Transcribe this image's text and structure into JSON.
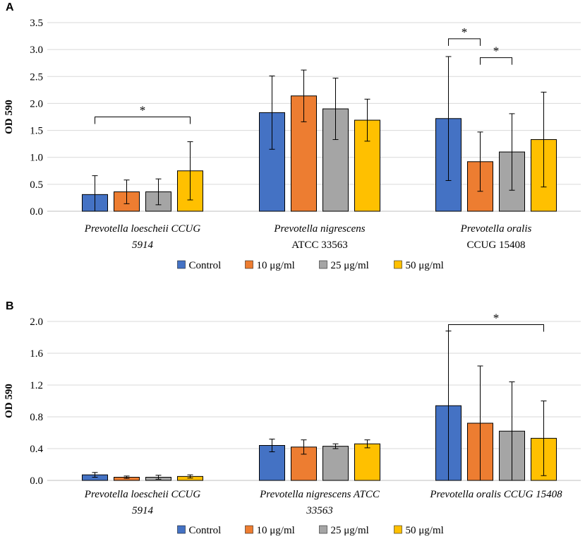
{
  "chart_data": [
    {
      "type": "bar",
      "panel": "A",
      "ylabel": "OD 590",
      "ylim": [
        0,
        3.5
      ],
      "yticks": [
        "0.0",
        "0.5",
        "1.0",
        "1.5",
        "2.0",
        "2.5",
        "3.0",
        "3.5"
      ],
      "categories": [
        [
          "Prevotella loescheii CCUG",
          "5914"
        ],
        [
          "Prevotella nigrescens",
          "ATCC  33563"
        ],
        [
          "Prevotella oralis",
          "CCUG 15408"
        ]
      ],
      "category_styles": [
        [
          "italic",
          "italic"
        ],
        [
          "italic",
          "normal"
        ],
        [
          "italic",
          "normal"
        ]
      ],
      "series": [
        {
          "name": "Control",
          "color": "#4472C4",
          "values": [
            0.31,
            1.83,
            1.72
          ],
          "errors": [
            0.35,
            0.68,
            1.15
          ]
        },
        {
          "name": "10 μg/ml",
          "color": "#ED7D31",
          "values": [
            0.36,
            2.14,
            0.92
          ],
          "errors": [
            0.22,
            0.48,
            0.55
          ]
        },
        {
          "name": "25 μg/ml",
          "color": "#A5A5A5",
          "values": [
            0.36,
            1.9,
            1.1
          ],
          "errors": [
            0.24,
            0.57,
            0.71
          ]
        },
        {
          "name": "50 μg/ml",
          "color": "#FFC000",
          "values": [
            0.75,
            1.69,
            1.33
          ],
          "errors": [
            0.54,
            0.39,
            0.88
          ]
        }
      ],
      "significance": [
        {
          "category": 0,
          "from_series": 0,
          "to_series": 3,
          "label": "*",
          "y": 1.75
        },
        {
          "category": 2,
          "from_series": 0,
          "to_series": 1,
          "label": "*",
          "y": 3.2
        },
        {
          "category": 2,
          "from_series": 1,
          "to_series": 2,
          "label": "*",
          "y": 2.85
        }
      ],
      "legend": "bottom"
    },
    {
      "type": "bar",
      "panel": "B",
      "ylabel": "OD 590",
      "ylim": [
        0,
        2.0
      ],
      "yticks": [
        "0.0",
        "0.4",
        "0.8",
        "1.2",
        "1.6",
        "2.0"
      ],
      "categories": [
        [
          "Prevotella loescheii CCUG",
          "5914"
        ],
        [
          "Prevotella nigrescens ATCC",
          "33563"
        ],
        [
          "Prevotella oralis CCUG 15408"
        ]
      ],
      "category_styles": [
        [
          "italic",
          "italic"
        ],
        [
          "italic",
          "italic"
        ],
        [
          "italic"
        ]
      ],
      "series": [
        {
          "name": "Control",
          "color": "#4472C4",
          "values": [
            0.07,
            0.44,
            0.94
          ],
          "errors": [
            0.03,
            0.08,
            0.94
          ]
        },
        {
          "name": "10 μg/ml",
          "color": "#ED7D31",
          "values": [
            0.04,
            0.42,
            0.72
          ],
          "errors": [
            0.015,
            0.09,
            0.72
          ]
        },
        {
          "name": "25 μg/ml",
          "color": "#A5A5A5",
          "values": [
            0.04,
            0.43,
            0.62
          ],
          "errors": [
            0.025,
            0.03,
            0.62
          ]
        },
        {
          "name": "50 μg/ml",
          "color": "#FFC000",
          "values": [
            0.05,
            0.46,
            0.53
          ],
          "errors": [
            0.02,
            0.05,
            0.47
          ]
        }
      ],
      "significance": [
        {
          "category": 2,
          "from_series": 0,
          "to_series": 3,
          "label": "*",
          "y": 1.96
        }
      ],
      "legend": "bottom"
    }
  ]
}
